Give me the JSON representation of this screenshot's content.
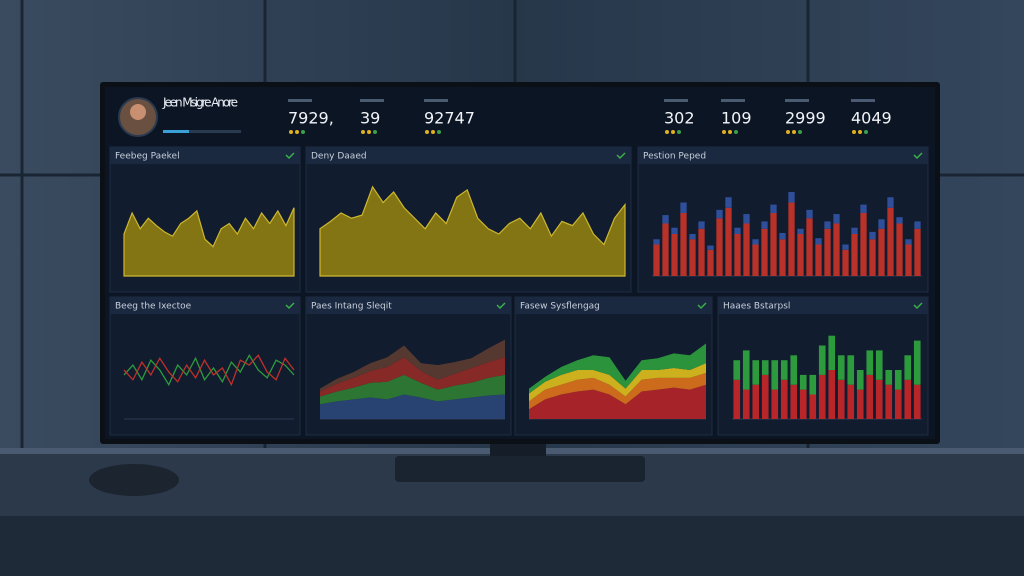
{
  "header": {
    "user_name": "Jeen Msigre Anore",
    "kpis": [
      {
        "value": "7929,"
      },
      {
        "value": 39
      },
      {
        "value": 92747
      },
      {
        "value": 302
      },
      {
        "value": 109
      },
      {
        "value": 2999
      },
      {
        "value": 4049
      }
    ]
  },
  "panels": [
    {
      "title": "Feebeg Paekel",
      "type": "area",
      "ylim": [
        0,
        100
      ],
      "series": [
        {
          "color": "#8a7a12",
          "values": [
            40,
            60,
            45,
            55,
            48,
            42,
            38,
            50,
            55,
            62,
            35,
            28,
            45,
            50,
            40,
            55,
            45,
            60,
            50,
            62,
            48,
            65
          ]
        }
      ]
    },
    {
      "title": "Deny Daaed",
      "type": "area",
      "ylim": [
        0,
        100
      ],
      "series": [
        {
          "color": "#8a7a12",
          "values": [
            45,
            52,
            60,
            55,
            58,
            85,
            70,
            80,
            65,
            55,
            45,
            60,
            50,
            75,
            82,
            55,
            45,
            40,
            50,
            55,
            45,
            60,
            38,
            52,
            48,
            60,
            40,
            30,
            55,
            68
          ]
        }
      ]
    },
    {
      "title": "Pestion Peped",
      "type": "stacked-bar",
      "ylim": [
        0,
        100
      ],
      "series": [
        {
          "color": "#b8322a",
          "values": [
            30,
            50,
            40,
            60,
            35,
            45,
            25,
            55,
            65,
            40,
            50,
            30,
            45,
            60,
            35,
            70,
            40,
            55,
            30,
            45,
            50,
            25,
            40,
            60,
            35,
            45,
            65,
            50,
            30,
            45
          ]
        },
        {
          "color": "#2f4f9a",
          "values": [
            5,
            8,
            6,
            10,
            5,
            7,
            4,
            8,
            10,
            6,
            9,
            5,
            7,
            8,
            6,
            10,
            5,
            8,
            6,
            7,
            9,
            5,
            6,
            8,
            7,
            9,
            10,
            6,
            5,
            7
          ]
        }
      ]
    },
    {
      "title": "Beeg the Ixectoe",
      "type": "line",
      "ylim": [
        0,
        100
      ],
      "series": [
        {
          "color": "#2e9a3e",
          "values": [
            45,
            55,
            40,
            60,
            50,
            35,
            55,
            45,
            62,
            40,
            52,
            38,
            58,
            48,
            65,
            50,
            42,
            60,
            55,
            45
          ]
        },
        {
          "color": "#c0302a",
          "values": [
            50,
            40,
            58,
            45,
            62,
            48,
            38,
            55,
            42,
            60,
            45,
            52,
            35,
            60,
            55,
            65,
            48,
            40,
            62,
            50
          ]
        }
      ]
    },
    {
      "title": "Paes Intang Sleqit",
      "type": "stacked-area",
      "ylim": [
        0,
        100
      ],
      "series": [
        {
          "color": "#2a4476",
          "values": [
            15,
            18,
            20,
            22,
            20,
            25,
            22,
            18,
            20,
            22,
            24,
            25
          ]
        },
        {
          "color": "#2e7a34",
          "values": [
            8,
            10,
            12,
            15,
            18,
            20,
            15,
            12,
            14,
            15,
            18,
            20
          ]
        },
        {
          "color": "#8e2a26",
          "values": [
            5,
            8,
            10,
            12,
            15,
            18,
            12,
            10,
            12,
            15,
            16,
            18
          ]
        },
        {
          "color": "#5a3a30",
          "values": [
            3,
            5,
            6,
            8,
            10,
            12,
            8,
            15,
            12,
            10,
            14,
            18
          ]
        }
      ]
    },
    {
      "title": "Fasew Sysflengag",
      "type": "stacked-area",
      "ylim": [
        0,
        100
      ],
      "series": [
        {
          "color": "#b0242a",
          "values": [
            10,
            20,
            25,
            28,
            30,
            25,
            15,
            28,
            30,
            32,
            30,
            35
          ]
        },
        {
          "color": "#d8701c",
          "values": [
            8,
            10,
            10,
            12,
            12,
            10,
            8,
            12,
            12,
            10,
            12,
            12
          ]
        },
        {
          "color": "#d8b81c",
          "values": [
            8,
            8,
            10,
            10,
            8,
            10,
            8,
            10,
            8,
            10,
            8,
            10
          ]
        },
        {
          "color": "#2e9a3e",
          "values": [
            5,
            5,
            8,
            10,
            15,
            18,
            8,
            10,
            12,
            15,
            15,
            20
          ]
        }
      ]
    },
    {
      "title": "Haaes Bstarpsl",
      "type": "stacked-bar",
      "ylim": [
        0,
        100
      ],
      "series": [
        {
          "color": "#b8262a",
          "values": [
            40,
            30,
            35,
            45,
            30,
            40,
            35,
            30,
            25,
            45,
            50,
            40,
            35,
            30,
            45,
            40,
            35,
            30,
            40,
            35
          ]
        },
        {
          "color": "#2e9a3e",
          "values": [
            20,
            40,
            25,
            15,
            30,
            20,
            30,
            15,
            20,
            30,
            35,
            25,
            30,
            20,
            25,
            30,
            15,
            20,
            25,
            45
          ]
        }
      ]
    }
  ]
}
